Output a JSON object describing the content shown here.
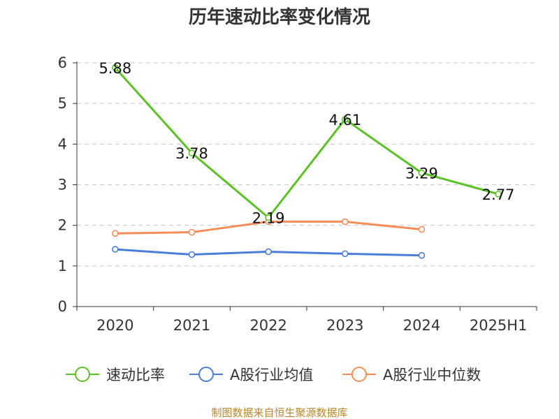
{
  "chart_data": {
    "type": "line",
    "title": "历年速动比率变化情况",
    "categories": [
      "2020",
      "2021",
      "2022",
      "2023",
      "2024",
      "2025H1"
    ],
    "ylim": [
      0,
      6
    ],
    "yticks": [
      0,
      1,
      2,
      3,
      4,
      5,
      6
    ],
    "grid": true,
    "legend_position": "bottom",
    "series": [
      {
        "name": "速动比率",
        "color": "#5bc225",
        "values": [
          5.88,
          3.78,
          2.19,
          4.61,
          3.29,
          2.77
        ],
        "labels": [
          "5.88",
          "3.78",
          "2.19",
          "4.61",
          "3.29",
          "2.77"
        ]
      },
      {
        "name": "A股行业均值",
        "color": "#4a7ed8",
        "values": [
          1.41,
          1.28,
          1.35,
          1.3,
          1.26,
          null
        ]
      },
      {
        "name": "A股行业中位数",
        "color": "#f58d58",
        "values": [
          1.8,
          1.83,
          2.09,
          2.09,
          1.9,
          null
        ]
      }
    ],
    "source": "制图数据来自恒生聚源数据库"
  }
}
